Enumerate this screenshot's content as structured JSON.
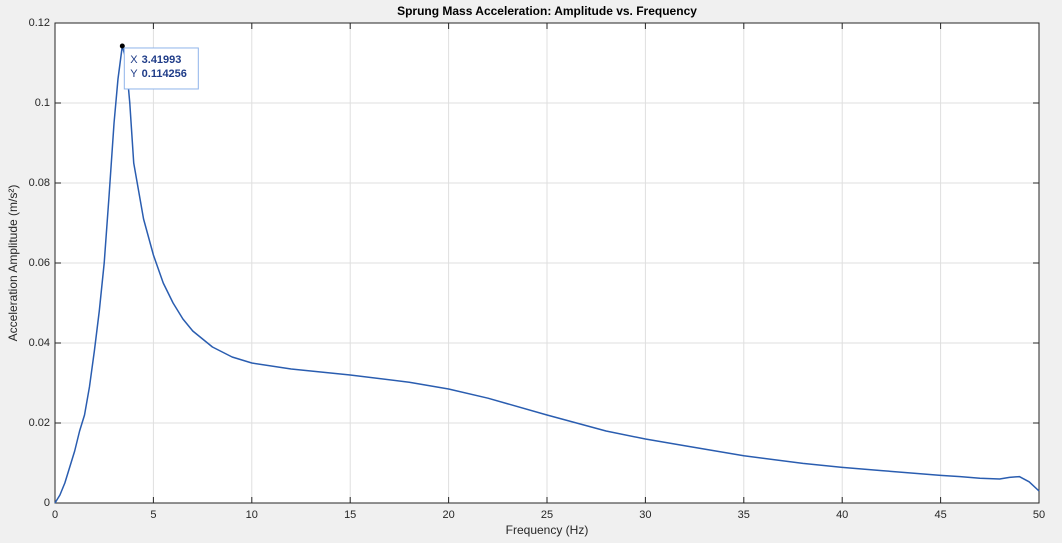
{
  "chart_data": {
    "type": "line",
    "title": "Sprung Mass Acceleration: Amplitude vs. Frequency",
    "x_label": "Frequency (Hz)",
    "y_label": "Acceleration Amplitude (m/s²)",
    "x": [
      0,
      0.25,
      0.5,
      0.75,
      1,
      1.25,
      1.5,
      1.75,
      2,
      2.25,
      2.5,
      2.75,
      3,
      3.2,
      3.41993,
      3.6,
      3.8,
      4,
      4.25,
      4.5,
      5,
      5.5,
      6,
      6.5,
      7,
      8,
      9,
      10,
      12,
      15,
      18,
      20,
      22,
      25,
      28,
      30,
      32,
      35,
      38,
      40,
      42,
      45,
      46,
      47,
      48,
      48.5,
      49,
      49.5,
      50
    ],
    "values": [
      0,
      0.002,
      0.005,
      0.009,
      0.013,
      0.018,
      0.022,
      0.029,
      0.038,
      0.048,
      0.06,
      0.077,
      0.095,
      0.106,
      0.114256,
      0.111,
      0.1,
      0.085,
      0.078,
      0.071,
      0.062,
      0.055,
      0.05,
      0.046,
      0.043,
      0.039,
      0.0365,
      0.035,
      0.0335,
      0.032,
      0.0302,
      0.0285,
      0.0262,
      0.022,
      0.018,
      0.016,
      0.0143,
      0.0118,
      0.0099,
      0.0089,
      0.0081,
      0.0069,
      0.0066,
      0.0062,
      0.006,
      0.0064,
      0.0066,
      0.0053,
      0.003
    ],
    "color": "#2a5db0",
    "xlim": [
      0,
      50
    ],
    "xticks": [
      0,
      5,
      10,
      15,
      20,
      25,
      30,
      35,
      40,
      45,
      50
    ],
    "ylim": [
      0,
      0.12
    ],
    "yticks": [
      0,
      0.02,
      0.04,
      0.06,
      0.08,
      0.1,
      0.12
    ],
    "grid": true,
    "datatip": {
      "x_name": "X",
      "x": 3.41993,
      "y_name": "Y",
      "y": 0.114256
    }
  }
}
